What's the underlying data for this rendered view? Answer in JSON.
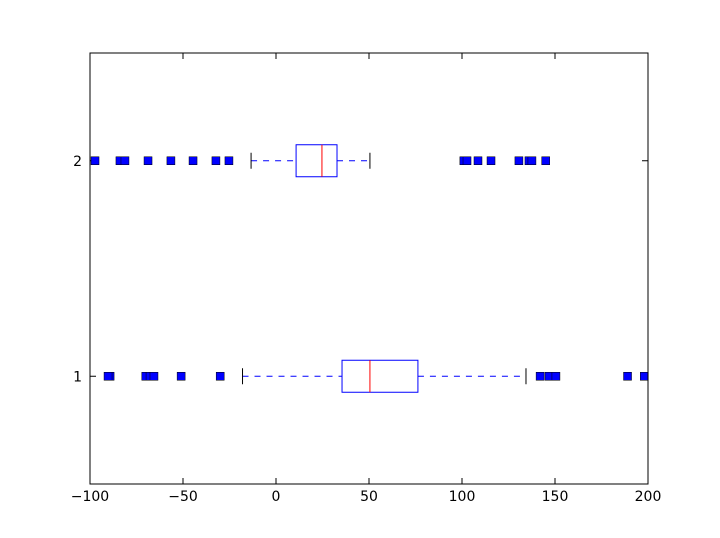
{
  "chart_data": {
    "type": "boxplot",
    "orientation": "horizontal",
    "xlim": [
      -100,
      200
    ],
    "xticks": [
      {
        "value": -100,
        "label": "−100"
      },
      {
        "value": -50,
        "label": "−50"
      },
      0,
      50,
      100,
      150,
      200
    ],
    "ylim": [
      0.5,
      2.5
    ],
    "yticks": [
      1,
      2
    ],
    "box_color": "#0000ff",
    "median_color": "#ff0000",
    "cap_color": "#000000",
    "flier_color": "#0000ff",
    "boxes": [
      {
        "position": 1,
        "whislo": -18,
        "q1": 35.5,
        "med": 50.5,
        "q3": 76.3,
        "whishi": 134.4,
        "fliers": [
          -89.2,
          -90.3,
          -70,
          -67.7,
          -65.6,
          -51,
          -30,
          142,
          146.8,
          150.5,
          189,
          198
        ]
      },
      {
        "position": 2,
        "whislo": -13.4,
        "q1": 10.8,
        "med": 24.7,
        "q3": 32.8,
        "whishi": 50.5,
        "fliers": [
          -97.3,
          -83.9,
          -81.2,
          -68.8,
          -56.5,
          -44.6,
          -32.3,
          -25.3,
          101,
          102.7,
          108.6,
          115.6,
          130.6,
          136,
          137.6,
          145
        ]
      }
    ]
  }
}
